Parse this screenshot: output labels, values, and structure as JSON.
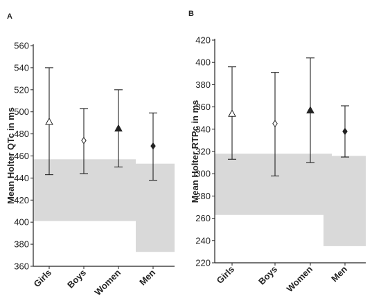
{
  "chart_data": [
    {
      "panel": "A",
      "type": "scatter",
      "categories": [
        "Girls",
        "Boys",
        "Women",
        "Men"
      ],
      "ylabel": "Mean Holter QTc in ms",
      "ylim": [
        360,
        560
      ],
      "yticks": [
        360,
        380,
        400,
        420,
        440,
        460,
        480,
        500,
        520,
        540,
        560
      ],
      "points": [
        {
          "category": "Girls",
          "mean": 491,
          "lower": 443,
          "upper": 540,
          "marker": "open-triangle"
        },
        {
          "category": "Boys",
          "mean": 474,
          "lower": 444,
          "upper": 503,
          "marker": "open-diamond"
        },
        {
          "category": "Women",
          "mean": 485,
          "lower": 450,
          "upper": 520,
          "marker": "filled-triangle"
        },
        {
          "category": "Men",
          "mean": 469,
          "lower": 438,
          "upper": 499,
          "marker": "filled-diamond"
        }
      ],
      "reference_bands": [
        {
          "categories": [
            "Girls",
            "Boys",
            "Women"
          ],
          "low": 401,
          "high": 457
        },
        {
          "categories": [
            "Men"
          ],
          "low": 373,
          "high": 453
        }
      ],
      "band_color": "#d9d9d9"
    },
    {
      "panel": "B",
      "type": "scatter",
      "categories": [
        "Girls",
        "Boys",
        "Women",
        "Men"
      ],
      "ylabel": "Mean Holter RTPc in ms",
      "ylim": [
        220,
        420
      ],
      "yticks": [
        220,
        240,
        260,
        280,
        300,
        320,
        340,
        360,
        380,
        400,
        420
      ],
      "points": [
        {
          "category": "Girls",
          "mean": 354,
          "lower": 313,
          "upper": 396,
          "marker": "open-triangle"
        },
        {
          "category": "Boys",
          "mean": 345,
          "lower": 298,
          "upper": 391,
          "marker": "open-diamond"
        },
        {
          "category": "Women",
          "mean": 357,
          "lower": 310,
          "upper": 404,
          "marker": "filled-triangle"
        },
        {
          "category": "Men",
          "mean": 338,
          "lower": 315,
          "upper": 361,
          "marker": "filled-diamond"
        }
      ],
      "reference_bands": [
        {
          "categories": [
            "Girls",
            "Boys",
            "Women"
          ],
          "low": 263,
          "high": 318
        },
        {
          "categories": [
            "Men"
          ],
          "low": 235,
          "high": 316
        }
      ],
      "band_color": "#d9d9d9"
    }
  ]
}
